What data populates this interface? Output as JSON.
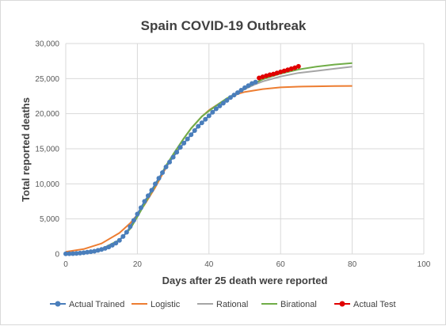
{
  "chart_data": {
    "type": "line",
    "title": "Spain COVID-19 Outbreak",
    "xlabel": "Days after 25 death were reported",
    "ylabel": "Total reported deaths",
    "xlim": [
      0,
      100
    ],
    "ylim": [
      0,
      30000
    ],
    "x_ticks": [
      0,
      20,
      40,
      60,
      80,
      100
    ],
    "y_ticks": [
      0,
      5000,
      10000,
      15000,
      20000,
      25000,
      30000
    ],
    "y_tick_labels": [
      "0",
      "5,000",
      "10,000",
      "15,000",
      "20,000",
      "25,000",
      "30,000"
    ],
    "grid": {
      "horizontal": true,
      "vertical": true
    },
    "legend_position": "bottom",
    "series": [
      {
        "name": "Actual Trained",
        "style": "line-markers",
        "color": "#4a7ebb",
        "points": [
          [
            0,
            30
          ],
          [
            1,
            40
          ],
          [
            2,
            60
          ],
          [
            3,
            90
          ],
          [
            4,
            130
          ],
          [
            5,
            180
          ],
          [
            6,
            250
          ],
          [
            7,
            320
          ],
          [
            8,
            400
          ],
          [
            9,
            520
          ],
          [
            10,
            650
          ],
          [
            11,
            800
          ],
          [
            12,
            1000
          ],
          [
            13,
            1250
          ],
          [
            14,
            1550
          ],
          [
            15,
            1950
          ],
          [
            16,
            2500
          ],
          [
            17,
            3100
          ],
          [
            18,
            3900
          ],
          [
            19,
            4800
          ],
          [
            20,
            5700
          ],
          [
            21,
            6600
          ],
          [
            22,
            7500
          ],
          [
            23,
            8300
          ],
          [
            24,
            9100
          ],
          [
            25,
            10000
          ],
          [
            26,
            10800
          ],
          [
            27,
            11600
          ],
          [
            28,
            12400
          ],
          [
            29,
            13100
          ],
          [
            30,
            13800
          ],
          [
            31,
            14500
          ],
          [
            32,
            15200
          ],
          [
            33,
            15800
          ],
          [
            34,
            16400
          ],
          [
            35,
            17000
          ],
          [
            36,
            17600
          ],
          [
            37,
            18200
          ],
          [
            38,
            18700
          ],
          [
            39,
            19200
          ],
          [
            40,
            19700
          ],
          [
            41,
            20200
          ],
          [
            42,
            20700
          ],
          [
            43,
            21100
          ],
          [
            44,
            21500
          ],
          [
            45,
            21900
          ],
          [
            46,
            22300
          ],
          [
            47,
            22650
          ],
          [
            48,
            23000
          ],
          [
            49,
            23350
          ],
          [
            50,
            23700
          ],
          [
            51,
            24000
          ],
          [
            52,
            24300
          ],
          [
            53,
            24500
          ]
        ]
      },
      {
        "name": "Logistic",
        "style": "line",
        "color": "#ed7d31",
        "points": [
          [
            0,
            300
          ],
          [
            5,
            700
          ],
          [
            10,
            1500
          ],
          [
            15,
            3000
          ],
          [
            18,
            4400
          ],
          [
            20,
            5600
          ],
          [
            22,
            7000
          ],
          [
            25,
            9500
          ],
          [
            28,
            12300
          ],
          [
            30,
            14100
          ],
          [
            33,
            16500
          ],
          [
            35,
            17900
          ],
          [
            38,
            19600
          ],
          [
            40,
            20500
          ],
          [
            43,
            21500
          ],
          [
            45,
            22100
          ],
          [
            48,
            22800
          ],
          [
            50,
            23100
          ],
          [
            55,
            23500
          ],
          [
            60,
            23750
          ],
          [
            65,
            23850
          ],
          [
            70,
            23900
          ],
          [
            75,
            23930
          ],
          [
            80,
            23950
          ]
        ]
      },
      {
        "name": "Rational",
        "style": "line",
        "color": "#a5a5a5",
        "points": [
          [
            0,
            50
          ],
          [
            5,
            150
          ],
          [
            10,
            700
          ],
          [
            15,
            2000
          ],
          [
            18,
            3600
          ],
          [
            20,
            5300
          ],
          [
            22,
            7100
          ],
          [
            25,
            9800
          ],
          [
            28,
            12600
          ],
          [
            30,
            14200
          ],
          [
            33,
            16500
          ],
          [
            35,
            17900
          ],
          [
            38,
            19600
          ],
          [
            40,
            20400
          ],
          [
            43,
            21500
          ],
          [
            45,
            22100
          ],
          [
            48,
            22900
          ],
          [
            50,
            23500
          ],
          [
            53,
            24200
          ],
          [
            55,
            24600
          ],
          [
            60,
            25300
          ],
          [
            65,
            25800
          ],
          [
            70,
            26100
          ],
          [
            75,
            26400
          ],
          [
            80,
            26700
          ]
        ]
      },
      {
        "name": "Birational",
        "style": "line",
        "color": "#70ad47",
        "points": [
          [
            0,
            30
          ],
          [
            5,
            150
          ],
          [
            10,
            700
          ],
          [
            15,
            2000
          ],
          [
            18,
            3600
          ],
          [
            20,
            5300
          ],
          [
            22,
            7100
          ],
          [
            25,
            9800
          ],
          [
            28,
            12600
          ],
          [
            30,
            14200
          ],
          [
            33,
            16500
          ],
          [
            35,
            17900
          ],
          [
            38,
            19600
          ],
          [
            40,
            20400
          ],
          [
            43,
            21500
          ],
          [
            45,
            22200
          ],
          [
            48,
            23000
          ],
          [
            50,
            23600
          ],
          [
            53,
            24400
          ],
          [
            55,
            24900
          ],
          [
            60,
            25700
          ],
          [
            65,
            26300
          ],
          [
            70,
            26700
          ],
          [
            75,
            27000
          ],
          [
            80,
            27200
          ]
        ]
      },
      {
        "name": "Actual Test",
        "style": "line-markers",
        "color": "#e00000",
        "points": [
          [
            54,
            25100
          ],
          [
            55,
            25250
          ],
          [
            56,
            25400
          ],
          [
            57,
            25550
          ],
          [
            58,
            25650
          ],
          [
            59,
            25800
          ],
          [
            60,
            25950
          ],
          [
            61,
            26100
          ],
          [
            62,
            26250
          ],
          [
            63,
            26400
          ],
          [
            64,
            26550
          ],
          [
            65,
            26750
          ]
        ]
      }
    ]
  }
}
